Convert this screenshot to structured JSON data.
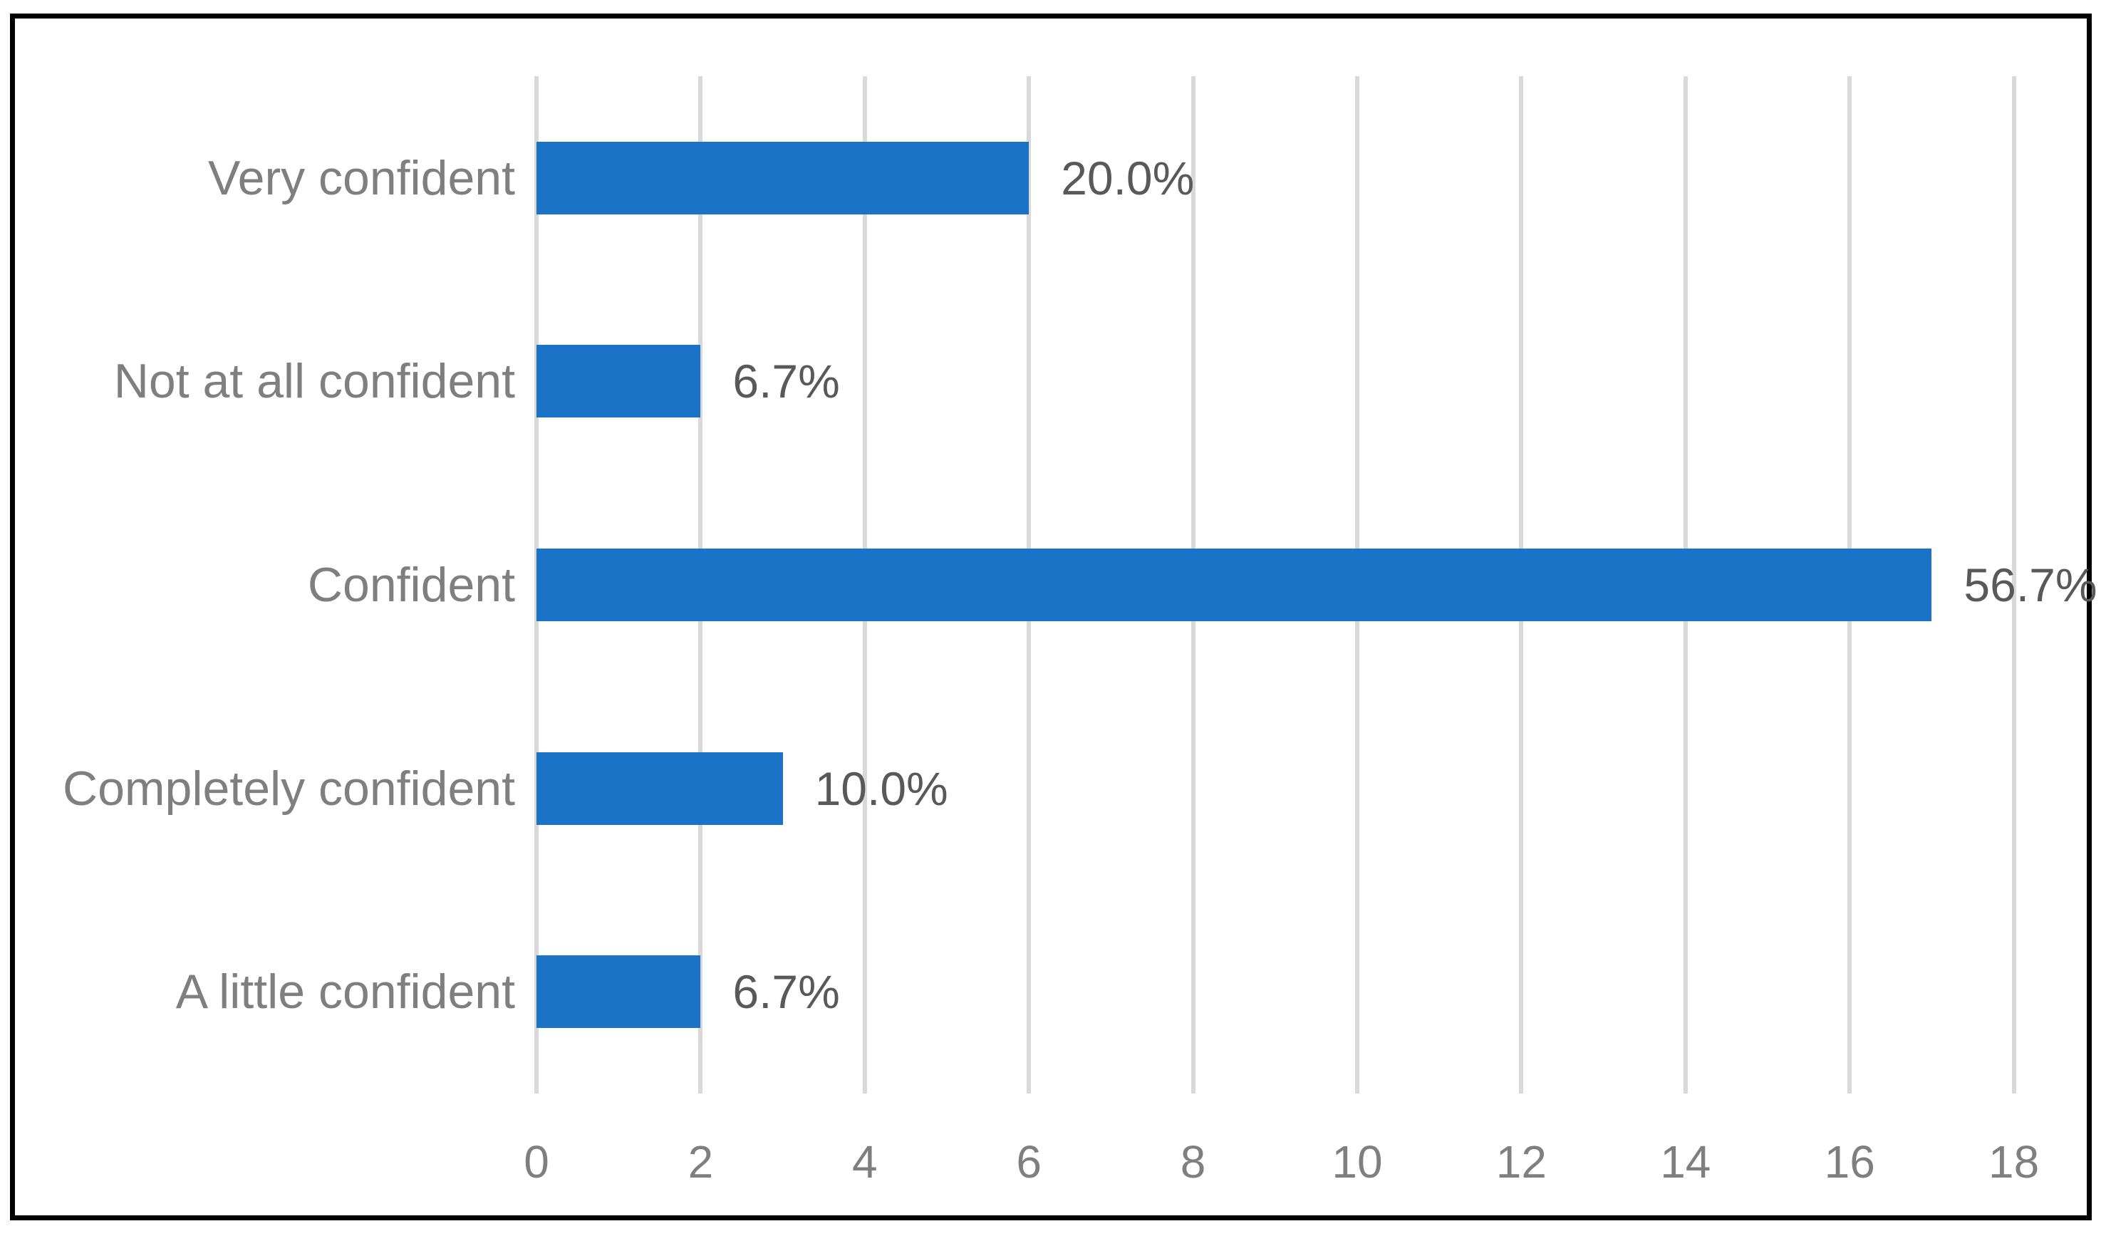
{
  "chart_data": {
    "type": "bar",
    "orientation": "horizontal",
    "title": "",
    "xlabel": "",
    "ylabel": "",
    "categories": [
      "Very confident",
      "Not at all confident",
      "Confident",
      "Completely confident",
      "A little confident"
    ],
    "values": [
      6,
      2,
      17,
      3,
      2
    ],
    "data_labels": [
      "20.0%",
      "6.7%",
      "56.7%",
      "10.0%",
      "6.7%"
    ],
    "x_ticks": [
      0,
      2,
      4,
      6,
      8,
      10,
      12,
      14,
      16,
      18
    ],
    "xlim": [
      0,
      18
    ],
    "grid": "vertical-only",
    "legend": "none",
    "colors": {
      "bar": "#1b73c8",
      "gridline": "#d9d9d9",
      "category_label": "#7f7f7f",
      "tick_label": "#7f7f7f",
      "data_label": "#595959",
      "frame_border": "#000000",
      "background": "#ffffff"
    }
  }
}
